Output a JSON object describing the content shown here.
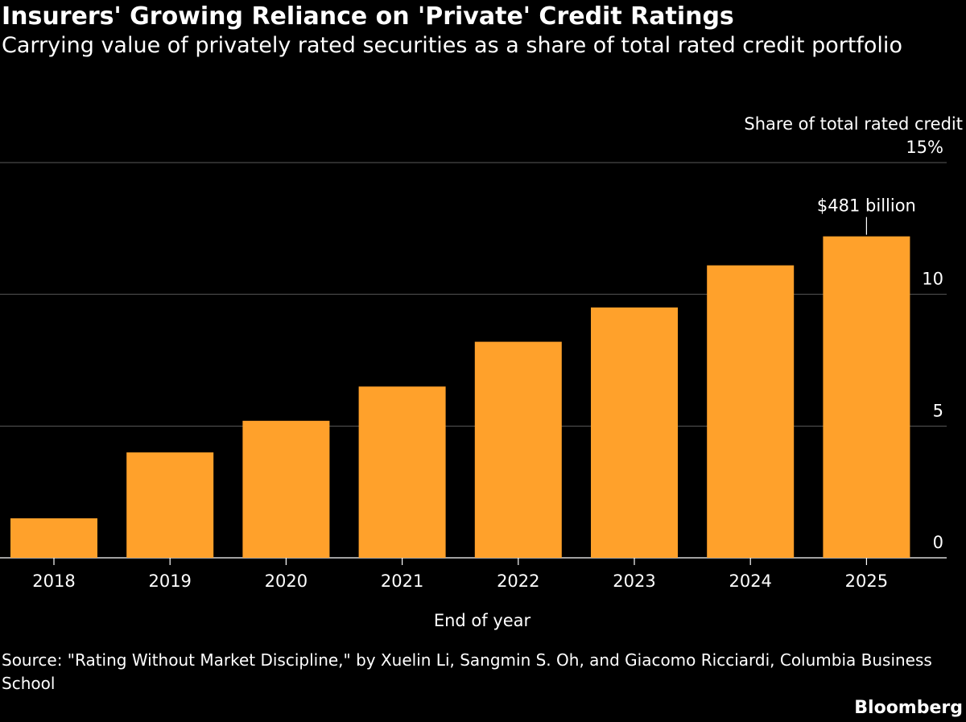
{
  "chart_data": {
    "type": "bar",
    "title": "Insurers' Growing Reliance on 'Private' Credit Ratings",
    "subtitle": "Carrying value of privately rated securities as a share of total rated credit portfolio",
    "xlabel": "End of year",
    "ylabel": "Share of total rated credit",
    "categories": [
      "2018",
      "2019",
      "2020",
      "2021",
      "2022",
      "2023",
      "2024",
      "2025"
    ],
    "values": [
      1.5,
      4.0,
      5.2,
      6.5,
      8.2,
      9.5,
      11.1,
      12.2
    ],
    "ylim": [
      0,
      15
    ],
    "yticks": [
      0,
      5,
      10,
      15
    ],
    "ytick_labels": [
      "0",
      "5",
      "10",
      "15%"
    ],
    "y_axis_position": "right",
    "grid": true,
    "bar_color": "#FFA12B",
    "annotation": {
      "category": "2025",
      "text": "$481 billion"
    },
    "source": "Source: \"Rating Without Market Discipline,\" by Xuelin Li, Sangmin S. Oh, and Giacomo Ricciardi, Columbia Business School",
    "brand": "Bloomberg"
  }
}
